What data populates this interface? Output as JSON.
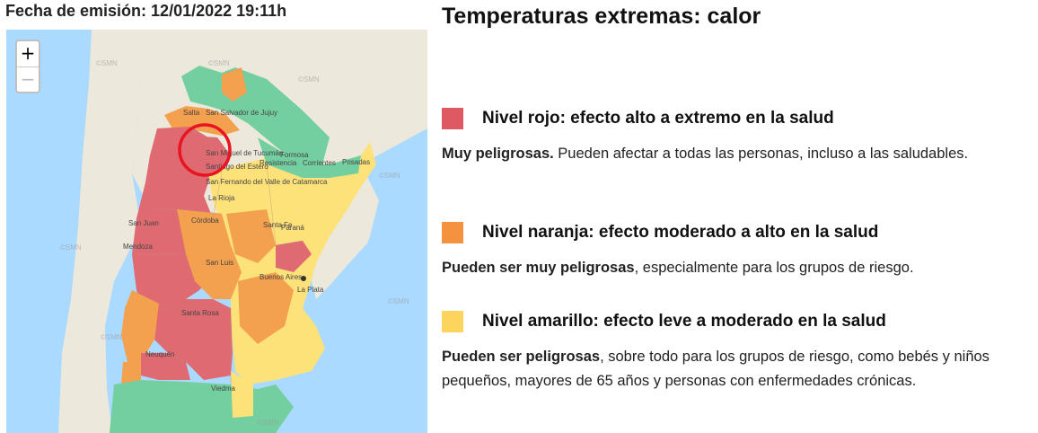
{
  "issue_date": "Fecha de emisión: 12/01/2022 19:11h",
  "map": {
    "zoom_in": "+",
    "zoom_out": "−",
    "watermark": "©SMN",
    "labels": {
      "salta": "Salta",
      "jujuy": "San Salvador de Jujuy",
      "formosa": "Formosa",
      "tucuman": "San Miguel de Tucumán",
      "resistencia": "Resistencia",
      "corrientes": "Corrientes",
      "posadas": "Posadas",
      "santiago": "Santiago del Estero",
      "catamarca": "San Fernando del Valle de Catamarca",
      "larioja": "La Rioja",
      "sanjuan": "San Juan",
      "cordoba": "Córdoba",
      "santafe": "Santa Fe",
      "parana": "Paraná",
      "mendoza": "Mendoza",
      "sanluis": "San Luis",
      "buenosaires": "Buenos Aires",
      "laplata": "La Plata",
      "santarosa": "Santa Rosa",
      "neuquen": "Neuquén",
      "viedma": "Viedma"
    },
    "colors": {
      "rojo": "#e06a72",
      "naranja": "#f3a04f",
      "amarillo": "#fde27a",
      "verde": "#74cfa0",
      "ocean": "#aadaff",
      "land": "#ede8dc",
      "highlight": "#e8141f"
    }
  },
  "panel": {
    "title": "Temperaturas extremas: calor",
    "levels": [
      {
        "title": "Nivel rojo: efecto alto a extremo en la salud",
        "color": "#df5963",
        "bold": "Muy peligrosas.",
        "text": " Pueden afectar a todas las personas, incluso a las saludables."
      },
      {
        "title": "Nivel naranja: efecto moderado a alto en la salud",
        "color": "#f4923f",
        "bold": "Pueden ser muy peligrosas",
        "text": ", especialmente para los grupos de riesgo."
      },
      {
        "title": "Nivel amarillo: efecto leve a moderado en la salud",
        "color": "#fdd55e",
        "bold": "Pueden ser peligrosas",
        "text": ", sobre todo para los grupos de riesgo, como bebés y niños pequeños, mayores de 65 años y personas con enfermedades crónicas."
      }
    ]
  }
}
